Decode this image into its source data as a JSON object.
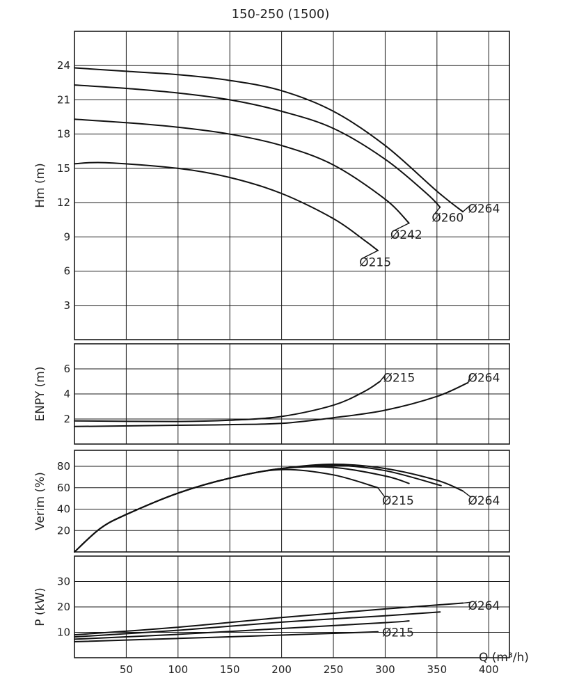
{
  "chart_data": {
    "title": "150-250 (1500)",
    "xlabel": "Q (m³/h)",
    "x_ticks": [
      50,
      100,
      150,
      200,
      250,
      300,
      350,
      400
    ],
    "xlim": [
      0,
      420
    ],
    "panels": [
      {
        "id": "hm",
        "type": "line",
        "ylabel": "Hm (m)",
        "ylim": [
          0,
          27
        ],
        "y_ticks": [
          3,
          6,
          9,
          12,
          15,
          18,
          21,
          24
        ],
        "grid": true,
        "series": [
          {
            "name": "Ø264",
            "label": "Ø264",
            "label_at": [
              380,
              11.5
            ],
            "points": [
              [
                0,
                23.8
              ],
              [
                50,
                23.5
              ],
              [
                100,
                23.2
              ],
              [
                150,
                22.7
              ],
              [
                200,
                21.8
              ],
              [
                250,
                20.0
              ],
              [
                300,
                17.0
              ],
              [
                350,
                13.0
              ],
              [
                375,
                11.2
              ]
            ]
          },
          {
            "name": "Ø260",
            "label": "Ø260",
            "label_at": [
              345,
              10.7
            ],
            "points": [
              [
                0,
                22.3
              ],
              [
                50,
                22.0
              ],
              [
                100,
                21.6
              ],
              [
                150,
                21.0
              ],
              [
                200,
                20.0
              ],
              [
                250,
                18.5
              ],
              [
                300,
                15.8
              ],
              [
                340,
                12.8
              ],
              [
                353,
                11.6
              ]
            ]
          },
          {
            "name": "Ø242",
            "label": "Ø242",
            "label_at": [
              305,
              9.2
            ],
            "points": [
              [
                0,
                19.3
              ],
              [
                50,
                19.0
              ],
              [
                100,
                18.6
              ],
              [
                150,
                18.0
              ],
              [
                200,
                17.0
              ],
              [
                250,
                15.3
              ],
              [
                300,
                12.3
              ],
              [
                323,
                10.2
              ]
            ]
          },
          {
            "name": "Ø215",
            "label": "Ø215",
            "label_at": [
              275,
              6.8
            ],
            "points": [
              [
                0,
                15.4
              ],
              [
                30,
                15.5
              ],
              [
                100,
                15.0
              ],
              [
                150,
                14.2
              ],
              [
                200,
                12.8
              ],
              [
                250,
                10.6
              ],
              [
                280,
                8.7
              ],
              [
                293,
                7.8
              ]
            ]
          }
        ]
      },
      {
        "id": "npsh",
        "type": "line",
        "ylabel": "ENPY (m)",
        "ylim": [
          0,
          8
        ],
        "y_ticks": [
          2,
          4,
          6
        ],
        "grid": true,
        "series": [
          {
            "name": "Ø215",
            "label": "Ø215",
            "label_at": [
              298,
              5.3
            ],
            "points": [
              [
                0,
                1.85
              ],
              [
                100,
                1.8
              ],
              [
                150,
                1.9
              ],
              [
                200,
                2.2
              ],
              [
                250,
                3.1
              ],
              [
                280,
                4.2
              ],
              [
                295,
                5.0
              ]
            ]
          },
          {
            "name": "Ø264",
            "label": "Ø264",
            "label_at": [
              380,
              5.3
            ],
            "points": [
              [
                0,
                1.4
              ],
              [
                100,
                1.5
              ],
              [
                150,
                1.55
              ],
              [
                200,
                1.65
              ],
              [
                250,
                2.1
              ],
              [
                300,
                2.7
              ],
              [
                350,
                3.8
              ],
              [
                380,
                4.9
              ]
            ]
          }
        ]
      },
      {
        "id": "eff",
        "type": "line",
        "ylabel": "Verim (%)",
        "ylim": [
          0,
          95
        ],
        "y_ticks": [
          20,
          40,
          60,
          80
        ],
        "grid": true,
        "series": [
          {
            "name": "Ø264",
            "label": "Ø264",
            "label_at": [
              380,
              48
            ],
            "points": [
              [
                0,
                0
              ],
              [
                25,
                22
              ],
              [
                50,
                35
              ],
              [
                100,
                55
              ],
              [
                150,
                69
              ],
              [
                200,
                78
              ],
              [
                250,
                82
              ],
              [
                300,
                78
              ],
              [
                350,
                67
              ],
              [
                375,
                57
              ]
            ]
          },
          {
            "name": "Ø260",
            "points": [
              [
                0,
                0
              ],
              [
                25,
                22
              ],
              [
                50,
                35
              ],
              [
                100,
                55
              ],
              [
                150,
                69
              ],
              [
                200,
                78
              ],
              [
                250,
                81
              ],
              [
                300,
                76
              ],
              [
                354,
                62
              ]
            ]
          },
          {
            "name": "Ø242",
            "points": [
              [
                0,
                0
              ],
              [
                25,
                22
              ],
              [
                50,
                35
              ],
              [
                100,
                55
              ],
              [
                150,
                69
              ],
              [
                200,
                78
              ],
              [
                250,
                79
              ],
              [
                300,
                71
              ],
              [
                323,
                64
              ]
            ]
          },
          {
            "name": "Ø215",
            "label": "Ø215",
            "label_at": [
              297,
              48
            ],
            "points": [
              [
                0,
                0
              ],
              [
                25,
                22
              ],
              [
                50,
                35
              ],
              [
                100,
                55
              ],
              [
                150,
                69
              ],
              [
                200,
                77
              ],
              [
                250,
                72
              ],
              [
                293,
                60
              ]
            ]
          }
        ]
      },
      {
        "id": "power",
        "type": "line",
        "ylabel": "P (kW)",
        "ylim": [
          0,
          40
        ],
        "y_ticks": [
          10,
          20,
          30
        ],
        "grid": true,
        "series": [
          {
            "name": "Ø264",
            "label": "Ø264",
            "label_at": [
              380,
              20.5
            ],
            "points": [
              [
                0,
                9
              ],
              [
                100,
                12
              ],
              [
                200,
                15.8
              ],
              [
                300,
                19.2
              ],
              [
                375,
                21.5
              ]
            ]
          },
          {
            "name": "Ø260",
            "points": [
              [
                0,
                8.2
              ],
              [
                100,
                10.8
              ],
              [
                200,
                14
              ],
              [
                300,
                16.5
              ],
              [
                353,
                18
              ]
            ]
          },
          {
            "name": "Ø242",
            "points": [
              [
                0,
                7.3
              ],
              [
                100,
                9.2
              ],
              [
                200,
                11.5
              ],
              [
                300,
                13.8
              ],
              [
                323,
                14.5
              ]
            ]
          },
          {
            "name": "Ø215",
            "label": "Ø215",
            "label_at": [
              297,
              10
            ],
            "points": [
              [
                0,
                6.3
              ],
              [
                100,
                7.6
              ],
              [
                200,
                8.9
              ],
              [
                293,
                10.2
              ]
            ]
          }
        ]
      }
    ]
  }
}
